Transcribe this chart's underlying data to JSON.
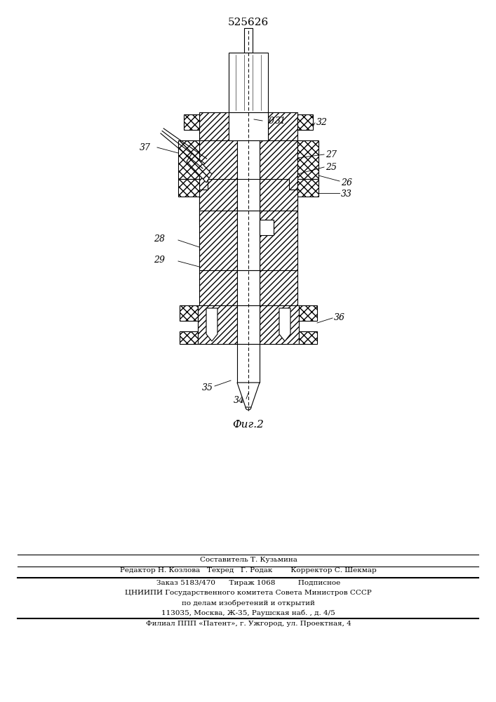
{
  "patent_number": "525626",
  "fig_label": "Фиг.2",
  "bg_color": "#ffffff",
  "line_color": "#000000",
  "footer_lines": [
    "Составитель Т. Кузьмина",
    "Редактор Н. Козлова   Техред   Г. Родак        Корректор С. Шекмар",
    "Заказ 5183/470      Тираж 1068          Подписное",
    "ЦНИИПИ Государственного комитета Совета Министров СССР",
    "по делам изобретений и открытий",
    "113035, Москва, Ж-35, Раушская наб. , д. 4/5",
    "Филиал ППП «Патент», г. Ужгород, ул. Проектная, 4"
  ]
}
